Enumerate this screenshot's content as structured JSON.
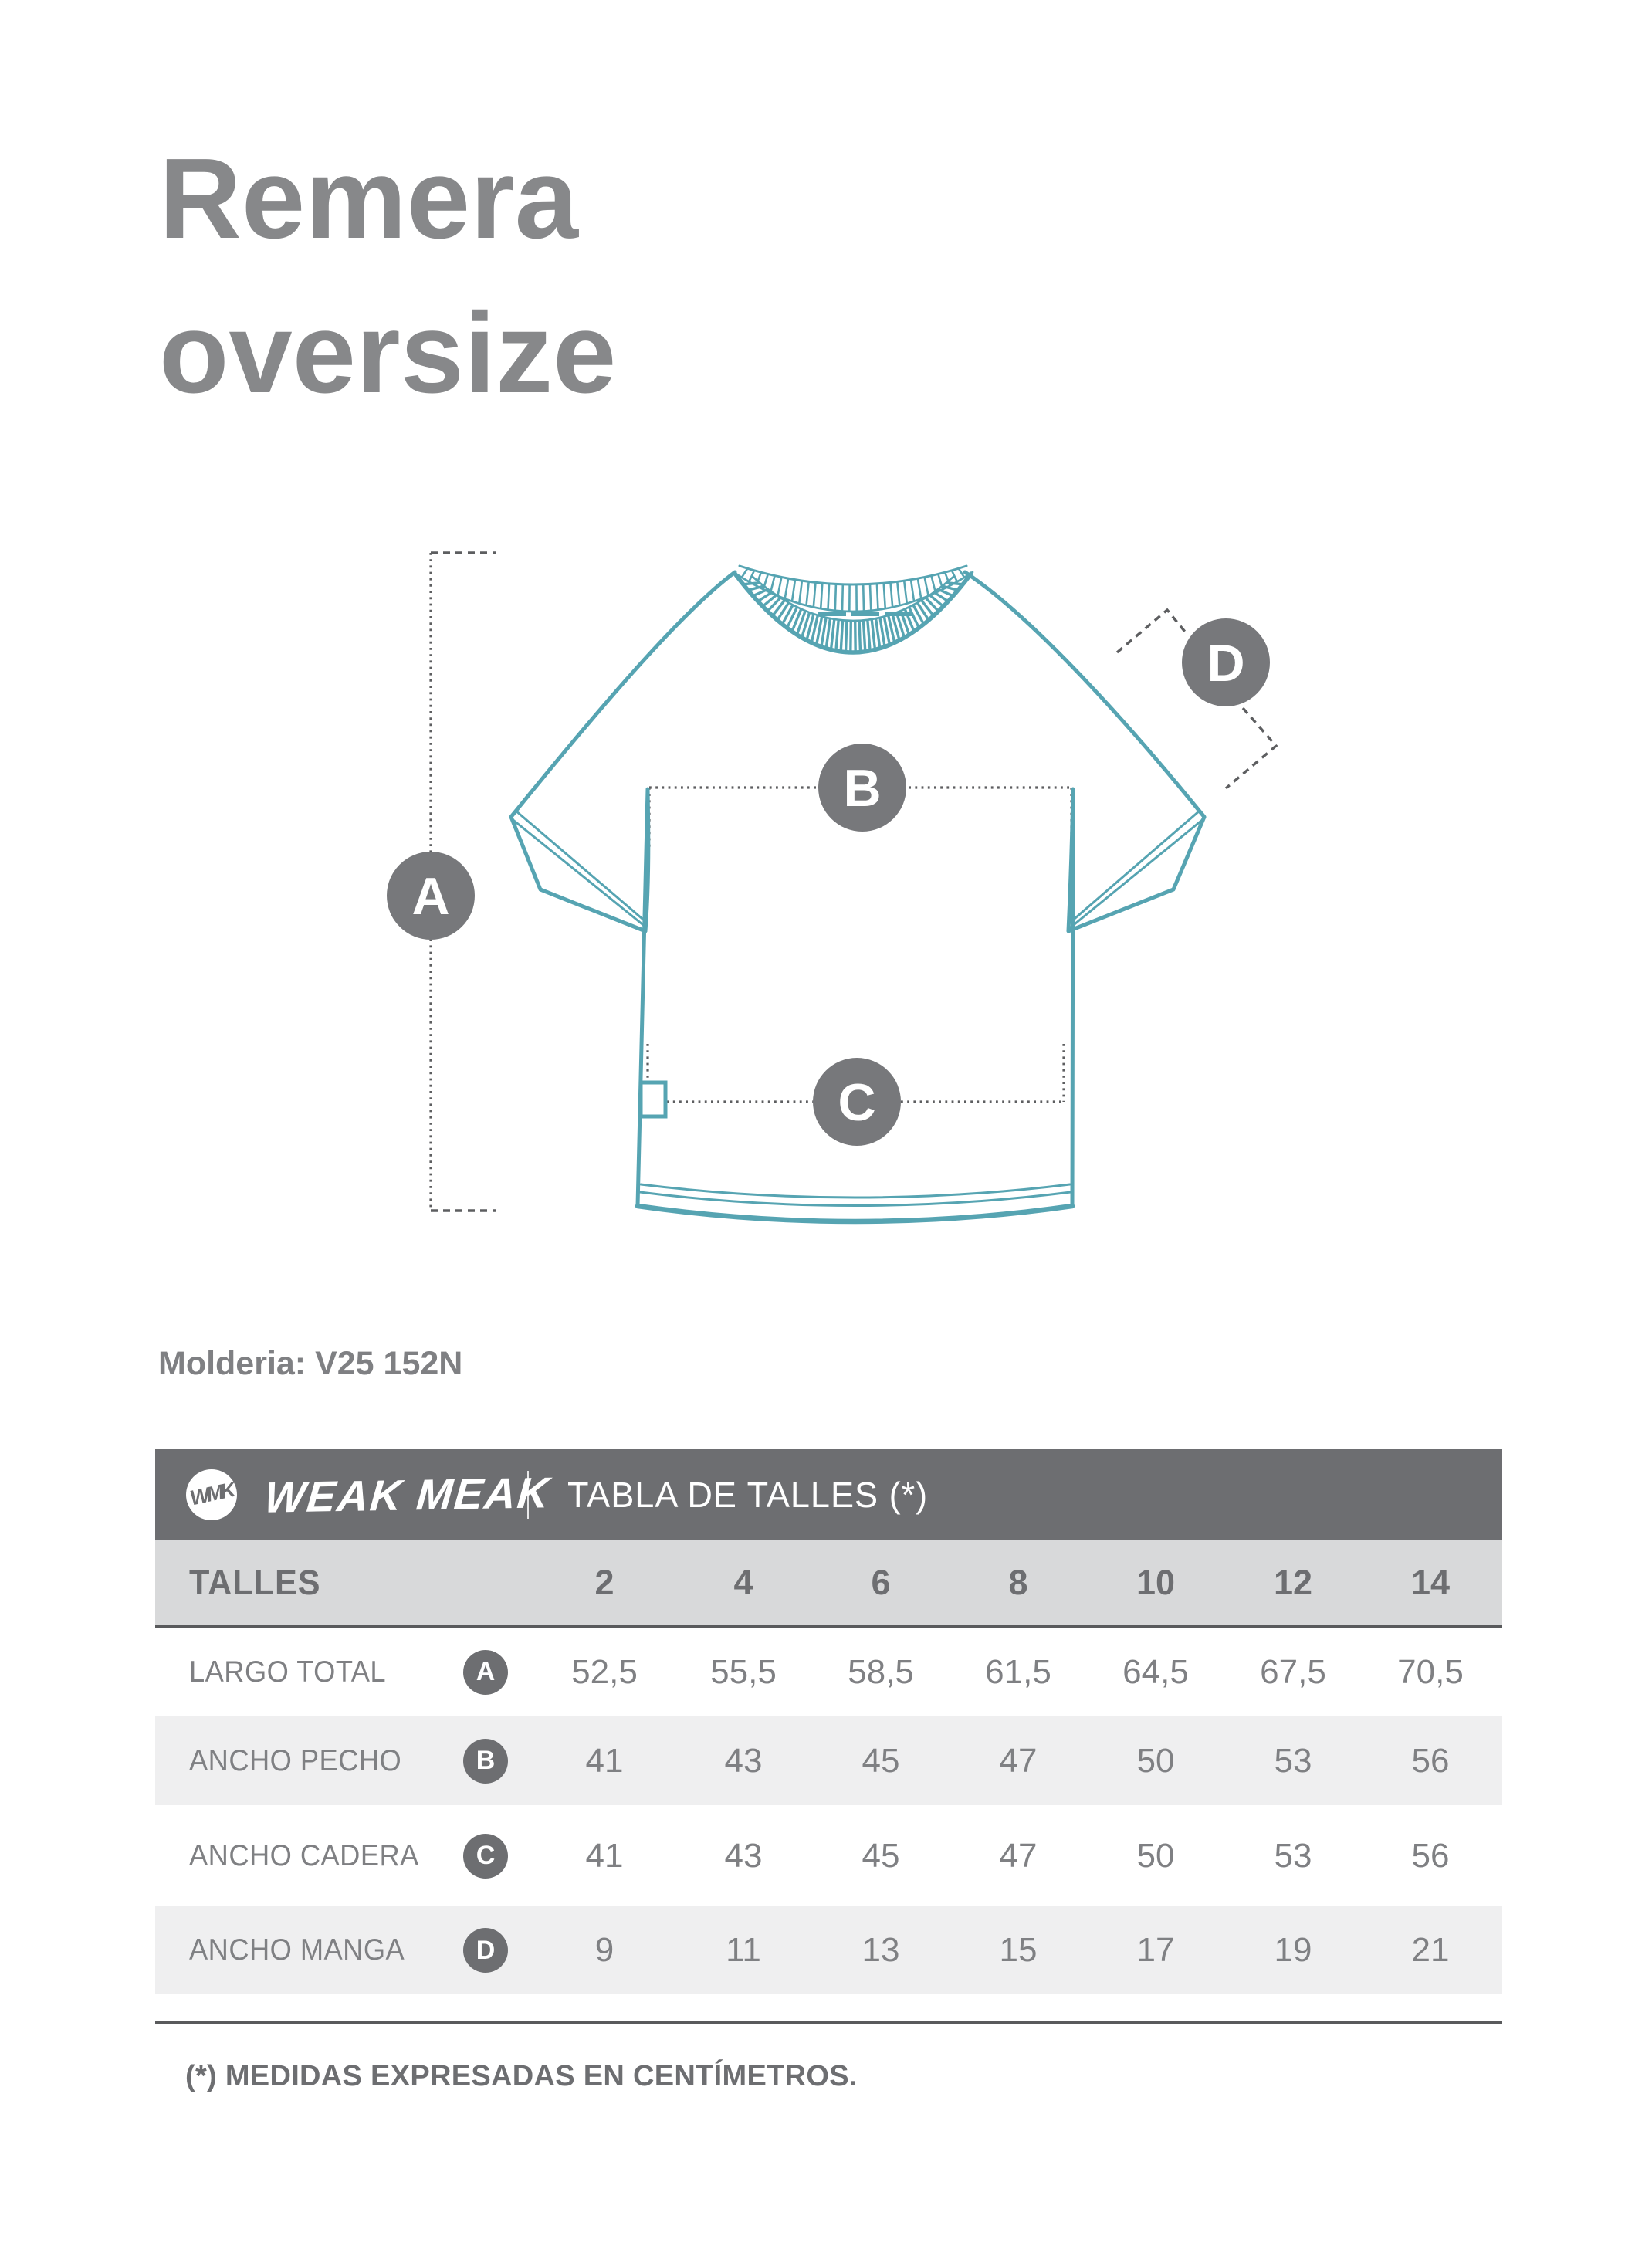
{
  "title": {
    "line1": "Remera",
    "line2": "oversize"
  },
  "molderia": "Molderia: V25 152N",
  "diagram": {
    "markers": [
      {
        "letter": "A",
        "meaning_row": "LARGO TOTAL"
      },
      {
        "letter": "B",
        "meaning_row": "ANCHO PECHO"
      },
      {
        "letter": "C",
        "meaning_row": "ANCHO CADERA"
      },
      {
        "letter": "D",
        "meaning_row": "ANCHO MANGA"
      }
    ]
  },
  "table": {
    "logo_monogram": "WMK",
    "brand": "WEAK MEAK",
    "title": "TABLA DE TALLES (*)",
    "size_header_label": "TALLES",
    "sizes": [
      "2",
      "4",
      "6",
      "8",
      "10",
      "12",
      "14"
    ],
    "rows": [
      {
        "label": "LARGO TOTAL",
        "badge": "A",
        "values": [
          "52,5",
          "55,5",
          "58,5",
          "61,5",
          "64,5",
          "67,5",
          "70,5"
        ]
      },
      {
        "label": "ANCHO PECHO",
        "badge": "B",
        "values": [
          "41",
          "43",
          "45",
          "47",
          "50",
          "53",
          "56"
        ]
      },
      {
        "label": "ANCHO CADERA",
        "badge": "C",
        "values": [
          "41",
          "43",
          "45",
          "47",
          "50",
          "53",
          "56"
        ]
      },
      {
        "label": "ANCHO MANGA",
        "badge": "D",
        "values": [
          "9",
          "11",
          "13",
          "15",
          "17",
          "19",
          "21"
        ]
      }
    ]
  },
  "footer": "(*) MEDIDAS EXPRESADAS EN CENTÍMETROS.",
  "colors": {
    "teal": "#56a4b2",
    "marker_circle": "#77787b",
    "badge_circle": "#6d6e71",
    "header_bar": "#6d6e71",
    "sizes_row_bg": "#d8d9da",
    "alt_row_bg": "#efeff0",
    "rule": "#595a5c",
    "dotted_line": "#5d5e60",
    "text_dark": "#6d6e71",
    "text_mid": "#7f8083",
    "title_gray": "#87888a"
  }
}
